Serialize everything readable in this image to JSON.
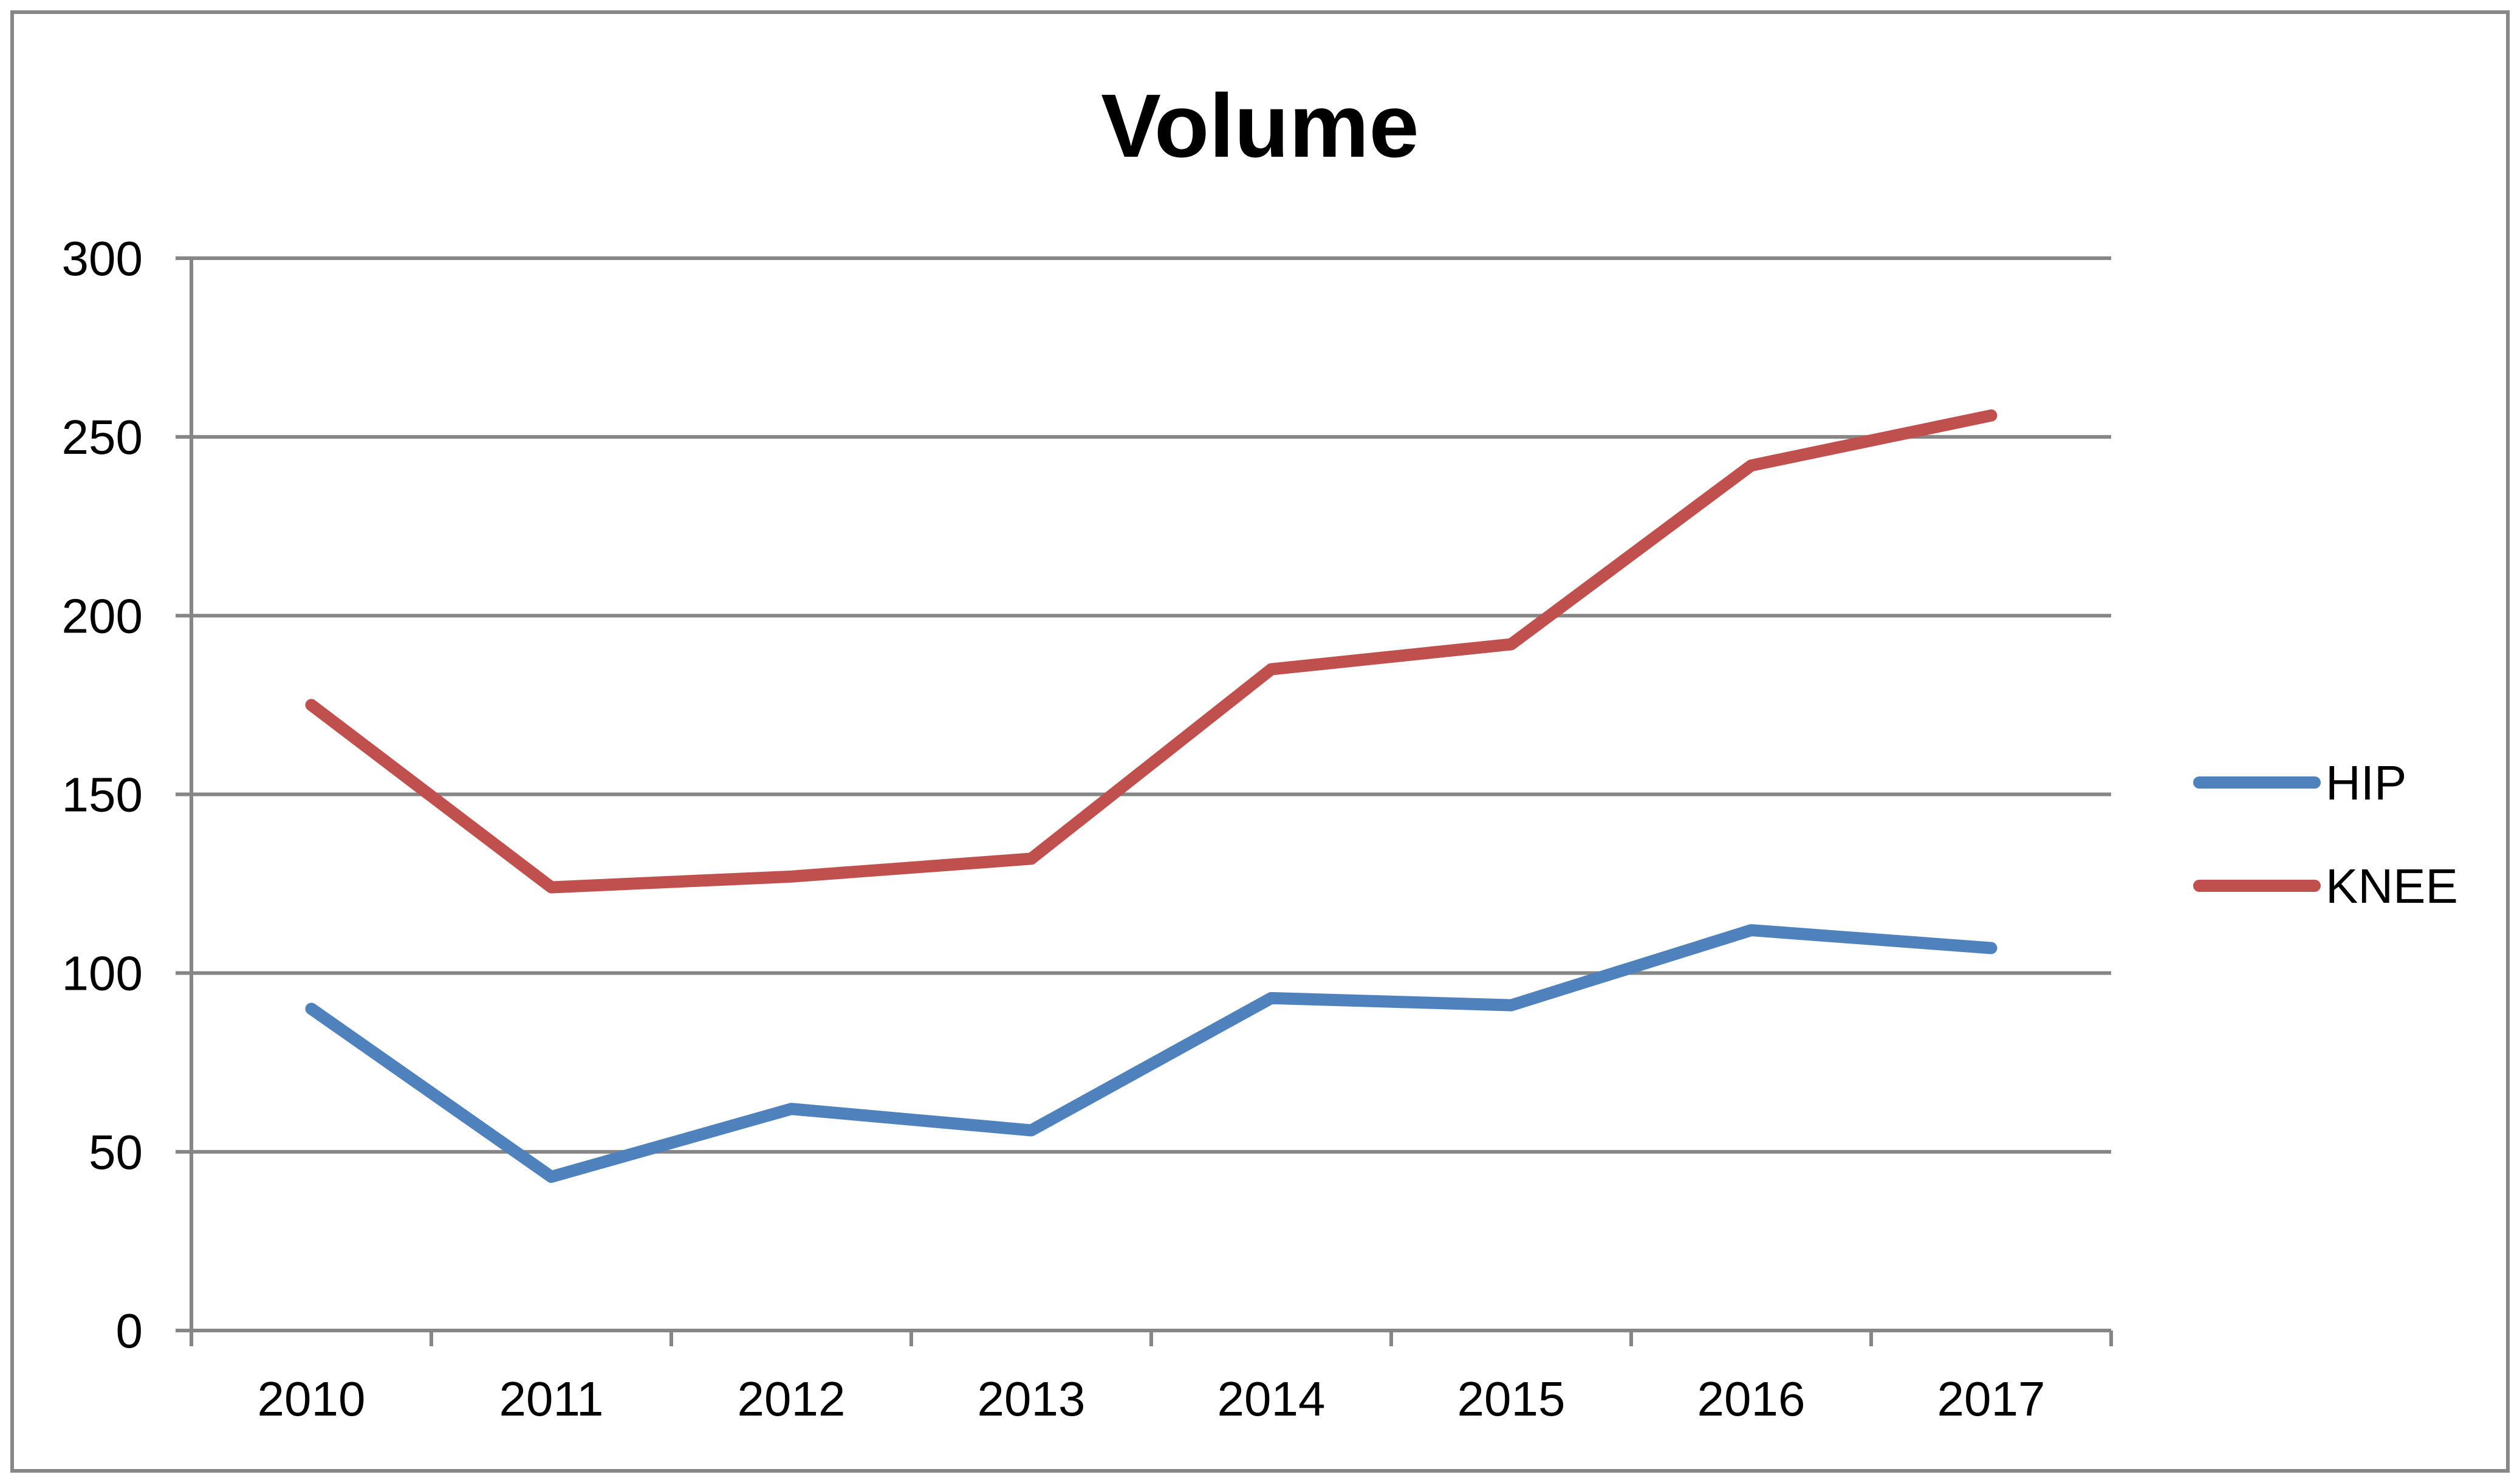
{
  "chart_data": {
    "type": "line",
    "title": "Volume",
    "xlabel": "",
    "ylabel": "",
    "categories": [
      "2010",
      "2011",
      "2012",
      "2013",
      "2014",
      "2015",
      "2016",
      "2017"
    ],
    "yticks": [
      "0",
      "50",
      "100",
      "150",
      "200",
      "250",
      "300"
    ],
    "ylim": [
      0,
      300
    ],
    "grid": "horizontal",
    "legend_position": "right",
    "series": [
      {
        "name": "HIP",
        "color": "#4F81BD",
        "values": [
          90,
          43,
          62,
          56,
          93,
          91,
          112,
          107
        ]
      },
      {
        "name": "KNEE",
        "color": "#C0504D",
        "values": [
          175,
          124,
          127,
          132,
          185,
          192,
          242,
          256
        ]
      }
    ]
  }
}
